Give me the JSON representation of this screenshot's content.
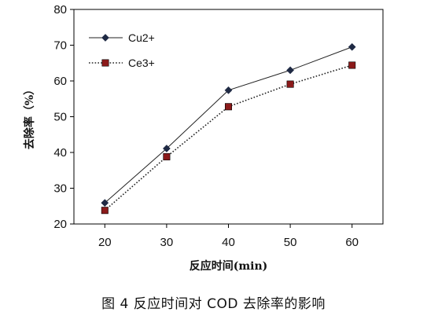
{
  "chart_data": {
    "type": "line",
    "x": [
      20,
      30,
      40,
      50,
      60
    ],
    "series": [
      {
        "name": "Cu2+",
        "values": [
          25.9,
          41.1,
          57.4,
          63.0,
          69.5
        ],
        "line": "solid",
        "marker": "diamond",
        "line_color": "#222222",
        "marker_color": "#1f2a44"
      },
      {
        "name": "Ce3+",
        "values": [
          23.8,
          38.8,
          52.8,
          59.1,
          64.4
        ],
        "line": "dotted",
        "marker": "square",
        "line_color": "#222222",
        "marker_color": "#8b1a1a"
      }
    ],
    "xlabel": "反应时间(min)",
    "ylabel": "去除率（%）",
    "xticks": [
      20,
      30,
      40,
      50,
      60
    ],
    "yticks": [
      20,
      30,
      40,
      50,
      60,
      70,
      80
    ],
    "ylim": [
      20,
      80
    ],
    "grid": false,
    "legend_position": "top-left"
  },
  "caption": "图 4   反应时间对 COD 去除率的影响"
}
